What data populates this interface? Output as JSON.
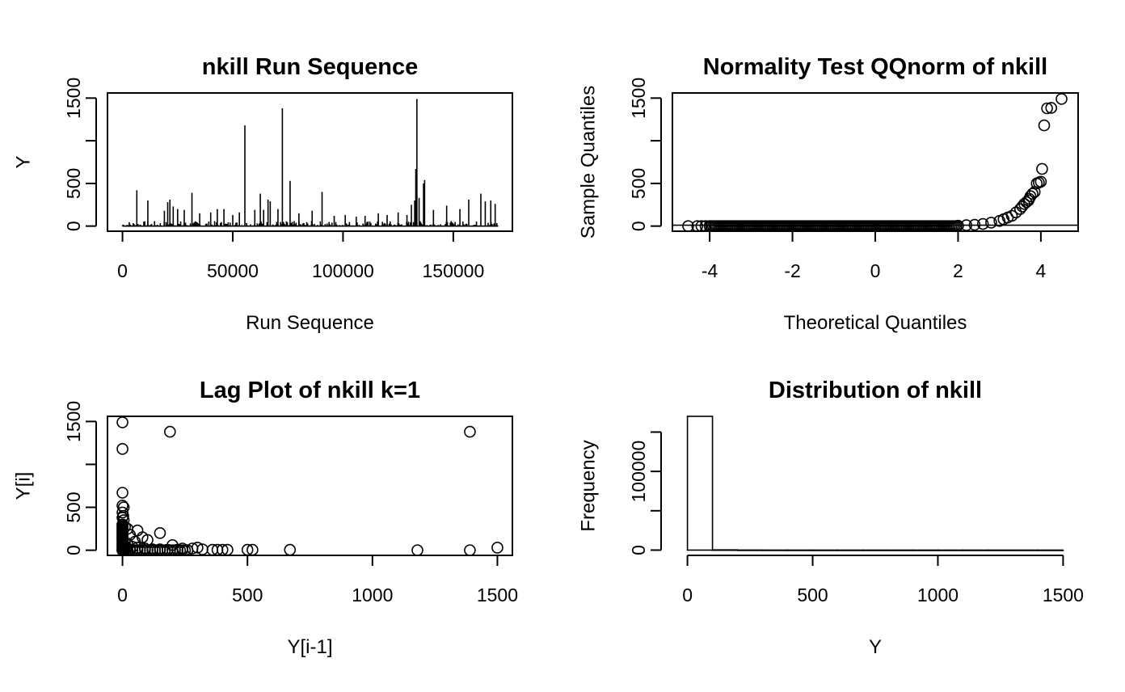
{
  "chart_data": [
    {
      "id": "run",
      "type": "line",
      "title": "nkill Run Sequence",
      "xlabel": "Run Sequence",
      "ylabel": "Y",
      "xlim": [
        -6800,
        176800
      ],
      "ylim": [
        -60,
        1560
      ],
      "xticks": [
        0,
        50000,
        100000,
        150000
      ],
      "yticks": [
        0,
        500,
        1000,
        1500
      ],
      "yticklabels": [
        "0",
        "500",
        "",
        "1500"
      ],
      "spikes": [
        [
          6500,
          420
        ],
        [
          11500,
          300
        ],
        [
          19000,
          180
        ],
        [
          20500,
          280
        ],
        [
          21500,
          310
        ],
        [
          23000,
          230
        ],
        [
          25000,
          200
        ],
        [
          28000,
          190
        ],
        [
          31500,
          390
        ],
        [
          35000,
          150
        ],
        [
          40000,
          160
        ],
        [
          43000,
          200
        ],
        [
          46000,
          200
        ],
        [
          50000,
          130
        ],
        [
          53000,
          160
        ],
        [
          55500,
          1180
        ],
        [
          60000,
          190
        ],
        [
          62500,
          380
        ],
        [
          64000,
          190
        ],
        [
          66000,
          310
        ],
        [
          67000,
          290
        ],
        [
          70500,
          200
        ],
        [
          72500,
          1380
        ],
        [
          76000,
          530
        ],
        [
          80000,
          150
        ],
        [
          86000,
          180
        ],
        [
          90500,
          400
        ],
        [
          96000,
          120
        ],
        [
          101000,
          130
        ],
        [
          106000,
          110
        ],
        [
          110000,
          120
        ],
        [
          116000,
          150
        ],
        [
          120000,
          130
        ],
        [
          125000,
          160
        ],
        [
          129000,
          130
        ],
        [
          131000,
          250
        ],
        [
          132500,
          300
        ],
        [
          133000,
          670
        ],
        [
          133500,
          1490
        ],
        [
          134500,
          330
        ],
        [
          136500,
          500
        ],
        [
          137000,
          540
        ],
        [
          141000,
          190
        ],
        [
          147000,
          240
        ],
        [
          153000,
          200
        ],
        [
          157000,
          310
        ],
        [
          162500,
          380
        ],
        [
          164500,
          290
        ],
        [
          167000,
          300
        ],
        [
          169000,
          260
        ]
      ],
      "baseline_max": 60,
      "n": 170350
    },
    {
      "id": "qq",
      "type": "scatter",
      "title": "Normality Test QQnorm of nkill",
      "xlabel": "Theoretical Quantiles",
      "ylabel": "Sample Quantiles",
      "xlim": [
        -4.9,
        4.9
      ],
      "ylim": [
        -60,
        1560
      ],
      "xticks": [
        -4,
        -2,
        0,
        2,
        4
      ],
      "yticks": [
        0,
        500,
        1000,
        1500
      ],
      "yticklabels": [
        "0",
        "500",
        "",
        "1500"
      ],
      "points": [
        [
          -4.52,
          0
        ],
        [
          -4.3,
          0
        ],
        [
          -4.2,
          0
        ],
        [
          -4.1,
          0
        ],
        [
          -4.0,
          0
        ],
        [
          2.0,
          5
        ],
        [
          2.2,
          10
        ],
        [
          2.4,
          15
        ],
        [
          2.6,
          25
        ],
        [
          2.8,
          40
        ],
        [
          3.0,
          60
        ],
        [
          3.1,
          80
        ],
        [
          3.2,
          100
        ],
        [
          3.3,
          120
        ],
        [
          3.4,
          160
        ],
        [
          3.5,
          200
        ],
        [
          3.55,
          230
        ],
        [
          3.6,
          260
        ],
        [
          3.65,
          280
        ],
        [
          3.7,
          300
        ],
        [
          3.72,
          320
        ],
        [
          3.75,
          350
        ],
        [
          3.8,
          380
        ],
        [
          3.85,
          400
        ],
        [
          3.9,
          500
        ],
        [
          3.95,
          510
        ],
        [
          4.0,
          520
        ],
        [
          4.03,
          670
        ],
        [
          4.08,
          1180
        ],
        [
          4.15,
          1380
        ],
        [
          4.25,
          1385
        ],
        [
          4.5,
          1490
        ]
      ],
      "reference_line": [
        [
          -4.9,
          10
        ],
        [
          4.9,
          10
        ]
      ]
    },
    {
      "id": "lag",
      "type": "scatter",
      "title": "Lag Plot of nkill k=1",
      "xlabel": "Y[i-1]",
      "ylabel": "Y[i]",
      "xlim": [
        -60,
        1560
      ],
      "ylim": [
        -60,
        1560
      ],
      "xticks": [
        0,
        500,
        1000,
        1500
      ],
      "yticks": [
        0,
        500,
        1000,
        1500
      ],
      "xticklabels": [
        "0",
        "500",
        "1000",
        "1500"
      ],
      "yticklabels": [
        "0",
        "500",
        "",
        "1500"
      ],
      "points": [
        [
          0,
          1490
        ],
        [
          0,
          1180
        ],
        [
          190,
          1380
        ],
        [
          1390,
          1380
        ],
        [
          0,
          670
        ],
        [
          0,
          520
        ],
        [
          5,
          500
        ],
        [
          0,
          440
        ],
        [
          3,
          400
        ],
        [
          0,
          380
        ],
        [
          5,
          350
        ],
        [
          0,
          300
        ],
        [
          10,
          270
        ],
        [
          20,
          250
        ],
        [
          60,
          230
        ],
        [
          150,
          200
        ],
        [
          30,
          180
        ],
        [
          80,
          150
        ],
        [
          0,
          150
        ],
        [
          100,
          120
        ],
        [
          50,
          100
        ],
        [
          20,
          80
        ],
        [
          200,
          60
        ],
        [
          240,
          20
        ],
        [
          280,
          20
        ],
        [
          300,
          30
        ],
        [
          320,
          10
        ],
        [
          360,
          5
        ],
        [
          380,
          5
        ],
        [
          400,
          5
        ],
        [
          420,
          5
        ],
        [
          500,
          5
        ],
        [
          520,
          5
        ],
        [
          670,
          5
        ],
        [
          1180,
          0
        ],
        [
          1390,
          0
        ],
        [
          1500,
          30
        ],
        [
          10,
          50
        ],
        [
          40,
          40
        ],
        [
          60,
          30
        ],
        [
          90,
          20
        ],
        [
          120,
          10
        ],
        [
          150,
          10
        ],
        [
          180,
          5
        ],
        [
          220,
          5
        ],
        [
          260,
          0
        ],
        [
          15,
          20
        ],
        [
          30,
          10
        ],
        [
          0,
          0
        ],
        [
          5,
          5
        ]
      ]
    },
    {
      "id": "hist",
      "type": "bar",
      "title": "Distribution of nkill",
      "xlabel": "Y",
      "ylabel": "Frequency",
      "xlim": [
        -60,
        1560
      ],
      "ylim": [
        -6700,
        170000
      ],
      "xticks": [
        0,
        500,
        1000,
        1500
      ],
      "yticks": [
        0,
        50000,
        100000,
        150000
      ],
      "xticklabels": [
        "0",
        "500",
        "1000",
        "1500"
      ],
      "yticklabels": [
        "0",
        "",
        "100000",
        ""
      ],
      "bins": [
        [
          0,
          100,
          170000
        ],
        [
          100,
          200,
          300
        ],
        [
          200,
          300,
          80
        ],
        [
          300,
          400,
          30
        ],
        [
          400,
          500,
          15
        ],
        [
          500,
          600,
          5
        ],
        [
          600,
          700,
          2
        ],
        [
          700,
          800,
          0
        ],
        [
          800,
          900,
          0
        ],
        [
          900,
          1000,
          0
        ],
        [
          1000,
          1100,
          0
        ],
        [
          1100,
          1200,
          1
        ],
        [
          1200,
          1300,
          0
        ],
        [
          1300,
          1400,
          2
        ],
        [
          1400,
          1500,
          1
        ]
      ]
    }
  ]
}
